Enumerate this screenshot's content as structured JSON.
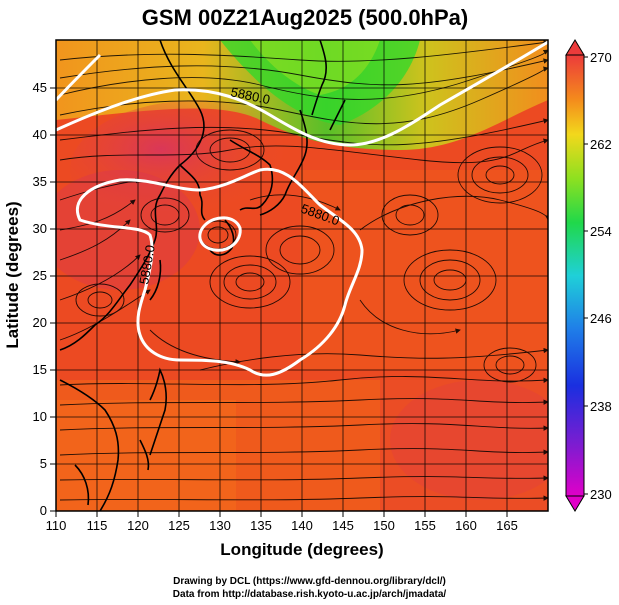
{
  "title": "GSM 00Z21Aug2025 (500.0hPa)",
  "xlabel": "Longitude (degrees)",
  "ylabel": "Latitude  (degrees)",
  "x_ticks": [
    "110",
    "115",
    "120",
    "125",
    "130",
    "135",
    "140",
    "145",
    "150",
    "155",
    "160",
    "165"
  ],
  "y_ticks": [
    "0",
    "5",
    "10",
    "15",
    "20",
    "25",
    "30",
    "35",
    "40",
    "45"
  ],
  "colorbar": {
    "labels": [
      "270",
      "262",
      "254",
      "246",
      "238",
      "230"
    ],
    "min": 230,
    "max": 270
  },
  "contour_labels": [
    "5880.0",
    "5880.0",
    "5880.0"
  ],
  "credits": [
    "Drawing by DCL (https://www.gfd-dennou.org/library/dcl/)",
    "Data from http://database.rish.kyoto-u.ac.jp/arch/jmadata/"
  ],
  "map": {
    "lon_range": [
      110,
      170
    ],
    "lat_range": [
      0,
      50
    ],
    "field": "temperature (K) with wind streamlines",
    "grid": true
  },
  "colors": {
    "warm": "#e8402a",
    "hot": "#d63a55",
    "mid": "#f27a1a",
    "cool": "#2fd42b",
    "contour": "#ffffff"
  }
}
